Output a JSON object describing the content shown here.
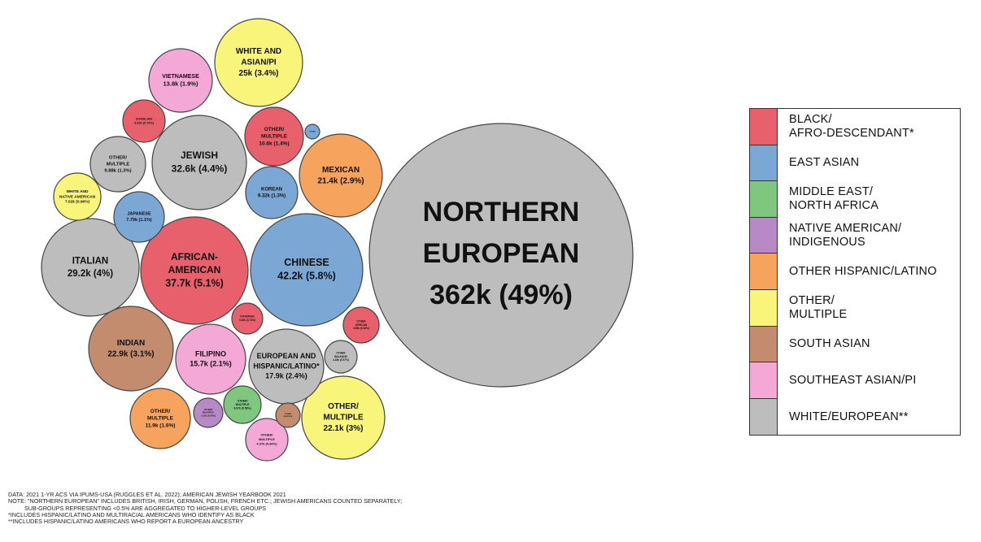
{
  "chart_data": {
    "type": "bubble",
    "categories": [
      {
        "key": "black",
        "label": "BLACK/\nAFRO-DESCENDANT*",
        "color": "#e8606b"
      },
      {
        "key": "east_asian",
        "label": "EAST ASIAN",
        "color": "#7ba7d4"
      },
      {
        "key": "mena",
        "label": "MIDDLE EAST/\nNORTH AFRICA",
        "color": "#7fc77f"
      },
      {
        "key": "native",
        "label": "NATIVE AMERICAN/\nINDIGENOUS",
        "color": "#b78ac7"
      },
      {
        "key": "hispanic",
        "label": "OTHER HISPANIC/LATINO",
        "color": "#f6a45d"
      },
      {
        "key": "multiple",
        "label": "OTHER/\nMULTIPLE",
        "color": "#f8f57a"
      },
      {
        "key": "south_asian",
        "label": "SOUTH ASIAN",
        "color": "#c48c6e"
      },
      {
        "key": "se_asian",
        "label": "SOUTHEAST ASIAN/PI",
        "color": "#f4a8d6"
      },
      {
        "key": "white",
        "label": "WHITE/EUROPEAN**",
        "color": "#bdbdbd"
      }
    ],
    "bubbles": [
      {
        "name": "NORTHERN EUROPEAN",
        "value_label": "362k (49%)",
        "value": 362000,
        "category": "white"
      },
      {
        "name": "CHINESE",
        "value_label": "42.2k (5.8%)",
        "value": 42200,
        "category": "east_asian"
      },
      {
        "name": "AFRICAN-AMERICAN",
        "value_label": "37.7k (5.1%)",
        "value": 37700,
        "category": "black"
      },
      {
        "name": "JEWISH",
        "value_label": "32.6k (4.4%)",
        "value": 32600,
        "category": "white"
      },
      {
        "name": "ITALIAN",
        "value_label": "29.2k (4%)",
        "value": 29200,
        "category": "white"
      },
      {
        "name": "WHITE AND ASIAN/PI",
        "value_label": "25k (3.4%)",
        "value": 25000,
        "category": "multiple"
      },
      {
        "name": "INDIAN",
        "value_label": "22.9k (3.1%)",
        "value": 22900,
        "category": "south_asian"
      },
      {
        "name": "OTHER/ MULTIPLE",
        "value_label": "22.1k (3%)",
        "value": 22100,
        "category": "multiple"
      },
      {
        "name": "MEXICAN",
        "value_label": "21.4k (2.9%)",
        "value": 21400,
        "category": "hispanic"
      },
      {
        "name": "EUROPEAN AND HISPANIC/LATINO*",
        "value_label": "17.9k (2.4%)",
        "value": 17900,
        "category": "white"
      },
      {
        "name": "FILIPINO",
        "value_label": "15.7k (2.1%)",
        "value": 15700,
        "category": "se_asian"
      },
      {
        "name": "VIETNAMESE",
        "value_label": "13.8k (1.9%)",
        "value": 13800,
        "category": "se_asian"
      },
      {
        "name": "OTHER/ MULTIPLE",
        "value_label": "11.9k (1.6%)",
        "value": 11900,
        "category": "hispanic"
      },
      {
        "name": "OTHER/ MULTIPLE",
        "value_label": "10.6k (1.4%)",
        "value": 10600,
        "category": "black"
      },
      {
        "name": "OTHER/ MULTIPLE",
        "value_label": "9.88k (1.3%)",
        "value": 9880,
        "category": "white"
      },
      {
        "name": "KOREAN",
        "value_label": "9.32k (1.3%)",
        "value": 9320,
        "category": "east_asian"
      },
      {
        "name": "JAPANESE",
        "value_label": "7.79k (1.1%)",
        "value": 7790,
        "category": "east_asian"
      },
      {
        "name": "WHITE AND NATIVE AMERICAN",
        "value_label": "7.02k (0.96%)",
        "value": 7020,
        "category": "multiple"
      },
      {
        "name": "SOMALIAN",
        "value_label": "5.33k (0.73%)",
        "value": 5330,
        "category": "black"
      },
      {
        "name": "ETHIOPIAN",
        "value_label": "5.39k (0.74%)",
        "value": 5390,
        "category": "black"
      },
      {
        "name": "OTHER AFRICAN",
        "value_label": "4.59k (0.63%)",
        "value": 4590,
        "category": "black"
      },
      {
        "name": "OTHER BALKANS",
        "value_label": "4.18k (0.57%)",
        "value": 4180,
        "category": "white"
      },
      {
        "name": "OTHER/ MULTIPLE",
        "value_label": "4.07k (0.56%)",
        "value": 4070,
        "category": "mena"
      },
      {
        "name": "OTHER/ MULTIPLE",
        "value_label": "4.37k (0.60%)",
        "value": 4370,
        "category": "se_asian"
      },
      {
        "name": "OTHER/ MULTIPLE",
        "value_label": "3.10k (0.42%)",
        "value": 3100,
        "category": "native"
      },
      {
        "name": "OTHER/ MULTIPLE",
        "value_label": "",
        "value": 1800,
        "category": "south_asian"
      },
      {
        "name": "OTHER",
        "value_label": "",
        "value": 500,
        "category": "east_asian"
      }
    ],
    "notes": [
      "DATA: 2021 1-YR ACS VIA IPUMS-USA (RUGGLES ET AL. 2022); AMERICAN JEWISH YEARBOOK 2021",
      "NOTE: \"NORTHERN EUROPEAN\" INCLUDES BRITISH, IRISH, GERMAN, POLISH, FRENCH ETC.; JEWISH AMERICANS COUNTED SEPARATELY;",
      "          SUB-GROUPS REPRESENTING <0.5% ARE AGGREGATED TO HIGHER-LEVEL GROUPS",
      "*INCLUDES HISPANIC/LATINO AND MULTIRACIAL AMERICANS WHO IDENTIFY AS BLACK",
      "**INCLUDES HISPANIC/LATINO AMERICANS WHO REPORT A EUROPEAN ANCESTRY"
    ]
  }
}
